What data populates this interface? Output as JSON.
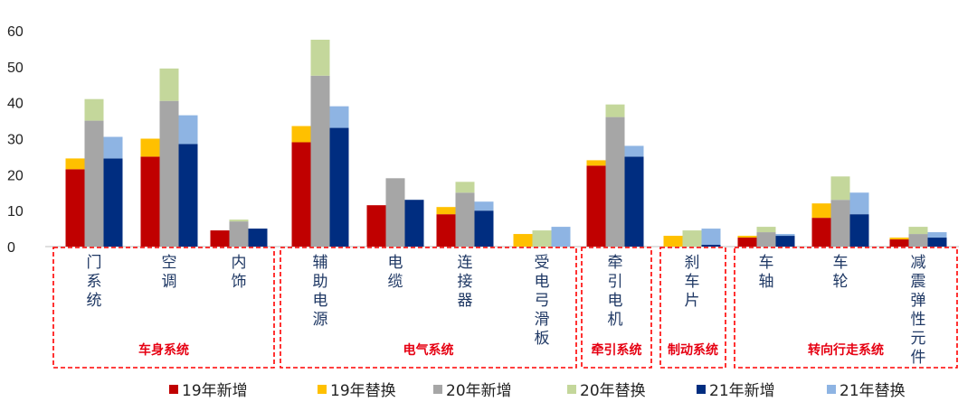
{
  "chart_data": {
    "type": "bar",
    "stacked_pairs": true,
    "categories": [
      "门系统",
      "空调",
      "内饰",
      "辅助电源",
      "电缆",
      "连接器",
      "受电弓滑板",
      "牵引电机",
      "刹车片",
      "车轴",
      "车轮",
      "减震弹性元件"
    ],
    "years": [
      {
        "name": "19",
        "new_label": "19年新增",
        "rep_label": "19年替换",
        "new_color": "#c00000",
        "rep_color": "#ffc000",
        "new": [
          21.5,
          25,
          4.5,
          29,
          11.5,
          9,
          0,
          22.5,
          0,
          2.5,
          8,
          2
        ],
        "rep": [
          3,
          5,
          0,
          4.5,
          0,
          2,
          3.5,
          1.5,
          3,
          0.5,
          4,
          0.5
        ]
      },
      {
        "name": "20",
        "new_label": "20年新增",
        "rep_label": "20年替换",
        "new_color": "#a6a6a6",
        "rep_color": "#c4d79b",
        "new": [
          35,
          40.5,
          7,
          47.5,
          19,
          15,
          0,
          36,
          0,
          4,
          13,
          3.5
        ],
        "rep": [
          6,
          9,
          0.5,
          10,
          0,
          3,
          4.5,
          3.5,
          4.5,
          1.5,
          6.5,
          2
        ]
      },
      {
        "name": "21",
        "new_label": "21年新增",
        "rep_label": "21年替换",
        "new_color": "#002d80",
        "rep_color": "#8eb4e3",
        "new": [
          24.5,
          28.5,
          5,
          33,
          13,
          10,
          0,
          25,
          0.5,
          3,
          9,
          2.5
        ],
        "rep": [
          6,
          8,
          0,
          6,
          0,
          2.5,
          5.5,
          3,
          4.5,
          0.5,
          6,
          1.5
        ]
      }
    ],
    "yticks": [
      "0",
      "10",
      "20",
      "30",
      "40",
      "50",
      "60"
    ],
    "ylim": [
      0,
      60
    ],
    "groups": [
      {
        "label": "车身系统",
        "from": 0,
        "to": 2
      },
      {
        "label": "电气系统",
        "from": 3,
        "to": 6
      },
      {
        "label": "牵引系统",
        "from": 7,
        "to": 7
      },
      {
        "label": "制动系统",
        "from": 8,
        "to": 8
      },
      {
        "label": "转向行走系统",
        "from": 9,
        "to": 11
      }
    ],
    "legend_position": "bottom"
  }
}
